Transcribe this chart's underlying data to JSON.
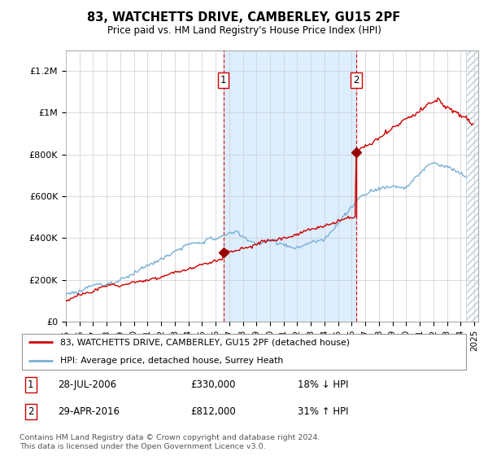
{
  "title": "83, WATCHETTS DRIVE, CAMBERLEY, GU15 2PF",
  "subtitle": "Price paid vs. HM Land Registry's House Price Index (HPI)",
  "ylabel_ticks": [
    "£0",
    "£200K",
    "£400K",
    "£600K",
    "£800K",
    "£1M",
    "£1.2M"
  ],
  "ylabel_values": [
    0,
    200000,
    400000,
    600000,
    800000,
    1000000,
    1200000
  ],
  "ylim": [
    0,
    1300000
  ],
  "xlim_start": 1995.0,
  "xlim_end": 2025.3,
  "sale1_year": 2006.57,
  "sale1_price": 330000,
  "sale2_year": 2016.33,
  "sale2_price": 812000,
  "sale1_label": "1",
  "sale2_label": "2",
  "legend1": "83, WATCHETTS DRIVE, CAMBERLEY, GU15 2PF (detached house)",
  "legend2": "HPI: Average price, detached house, Surrey Heath",
  "footnote": "Contains HM Land Registry data © Crown copyright and database right 2024.\nThis data is licensed under the Open Government Licence v3.0.",
  "line_color_red": "#cc0000",
  "line_color_blue": "#7ab0d4",
  "fill_color": "#ddeeff",
  "bg_color": "#ffffff",
  "grid_color": "#cccccc",
  "hatch_start": 2024.42
}
